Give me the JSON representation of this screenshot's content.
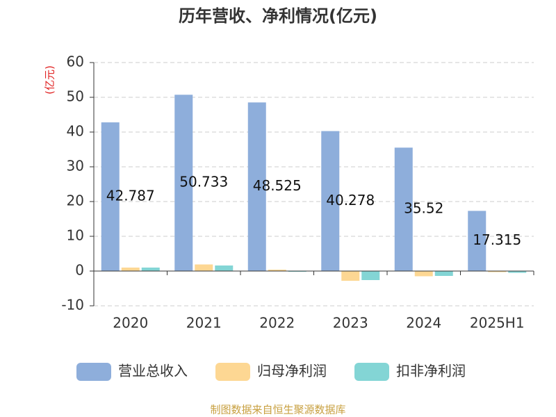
{
  "chart_data": {
    "type": "bar",
    "title": "历年营收、净利情况(亿元)",
    "y_label": "(亿元)",
    "categories": [
      "2020",
      "2021",
      "2022",
      "2023",
      "2024",
      "2025H1"
    ],
    "series": [
      {
        "name": "营业总收入",
        "color": "#8eaedb",
        "values": [
          42.787,
          50.733,
          48.525,
          40.278,
          35.52,
          17.315
        ],
        "show_labels": true
      },
      {
        "name": "归母净利润",
        "color": "#fdd793",
        "values": [
          1.0,
          1.9,
          0.4,
          -2.8,
          -1.5,
          -0.3
        ]
      },
      {
        "name": "扣非净利润",
        "color": "#83d5d5",
        "values": [
          1.0,
          1.6,
          -0.2,
          -2.6,
          -1.4,
          -0.5
        ]
      }
    ],
    "ylim": [
      -10,
      60
    ],
    "yticks": [
      -10,
      0,
      10,
      20,
      30,
      40,
      50,
      60
    ],
    "grid": true,
    "source": "制图数据来自恒生聚源数据库"
  }
}
